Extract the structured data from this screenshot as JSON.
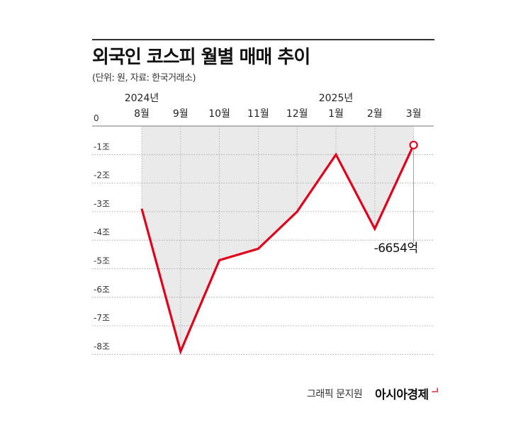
{
  "header": {
    "title": "외국인 코스피 월별 매매 추이",
    "subtitle": "(단위: 원, 자료: 한국거래소)"
  },
  "footer": {
    "credit": "그래픽 문지원",
    "brand": "아시아경제",
    "brand_mark": "ᅴ",
    "brand_color": "#e3001b"
  },
  "chart_data": {
    "type": "area",
    "x": [
      "8월",
      "9월",
      "10월",
      "11월",
      "12월",
      "1월",
      "2월",
      "3월"
    ],
    "year_labels": [
      {
        "label": "2024년",
        "month": "8월"
      },
      {
        "label": "2025년",
        "month": "1월"
      }
    ],
    "y_ticks": [
      {
        "value": 0,
        "label": "0"
      },
      {
        "value": -1,
        "label": "-1조"
      },
      {
        "value": -2,
        "label": "-2조"
      },
      {
        "value": -3,
        "label": "-3조"
      },
      {
        "value": -4,
        "label": "-4조"
      },
      {
        "value": -5,
        "label": "-5조"
      },
      {
        "value": -6,
        "label": "-6조"
      },
      {
        "value": -7,
        "label": "-7조"
      },
      {
        "value": -8,
        "label": "-8조"
      }
    ],
    "series": [
      {
        "values": [
          -2.9,
          -7.9,
          -4.7,
          -4.3,
          -3.0,
          -1.0,
          -3.6,
          -0.6654
        ],
        "color": "#e3001b"
      }
    ],
    "annotation": {
      "month": "3월",
      "label": "-6654억"
    },
    "ylim": [
      -8.5,
      0
    ],
    "area_fill": "#eaeaea",
    "grid": true
  }
}
